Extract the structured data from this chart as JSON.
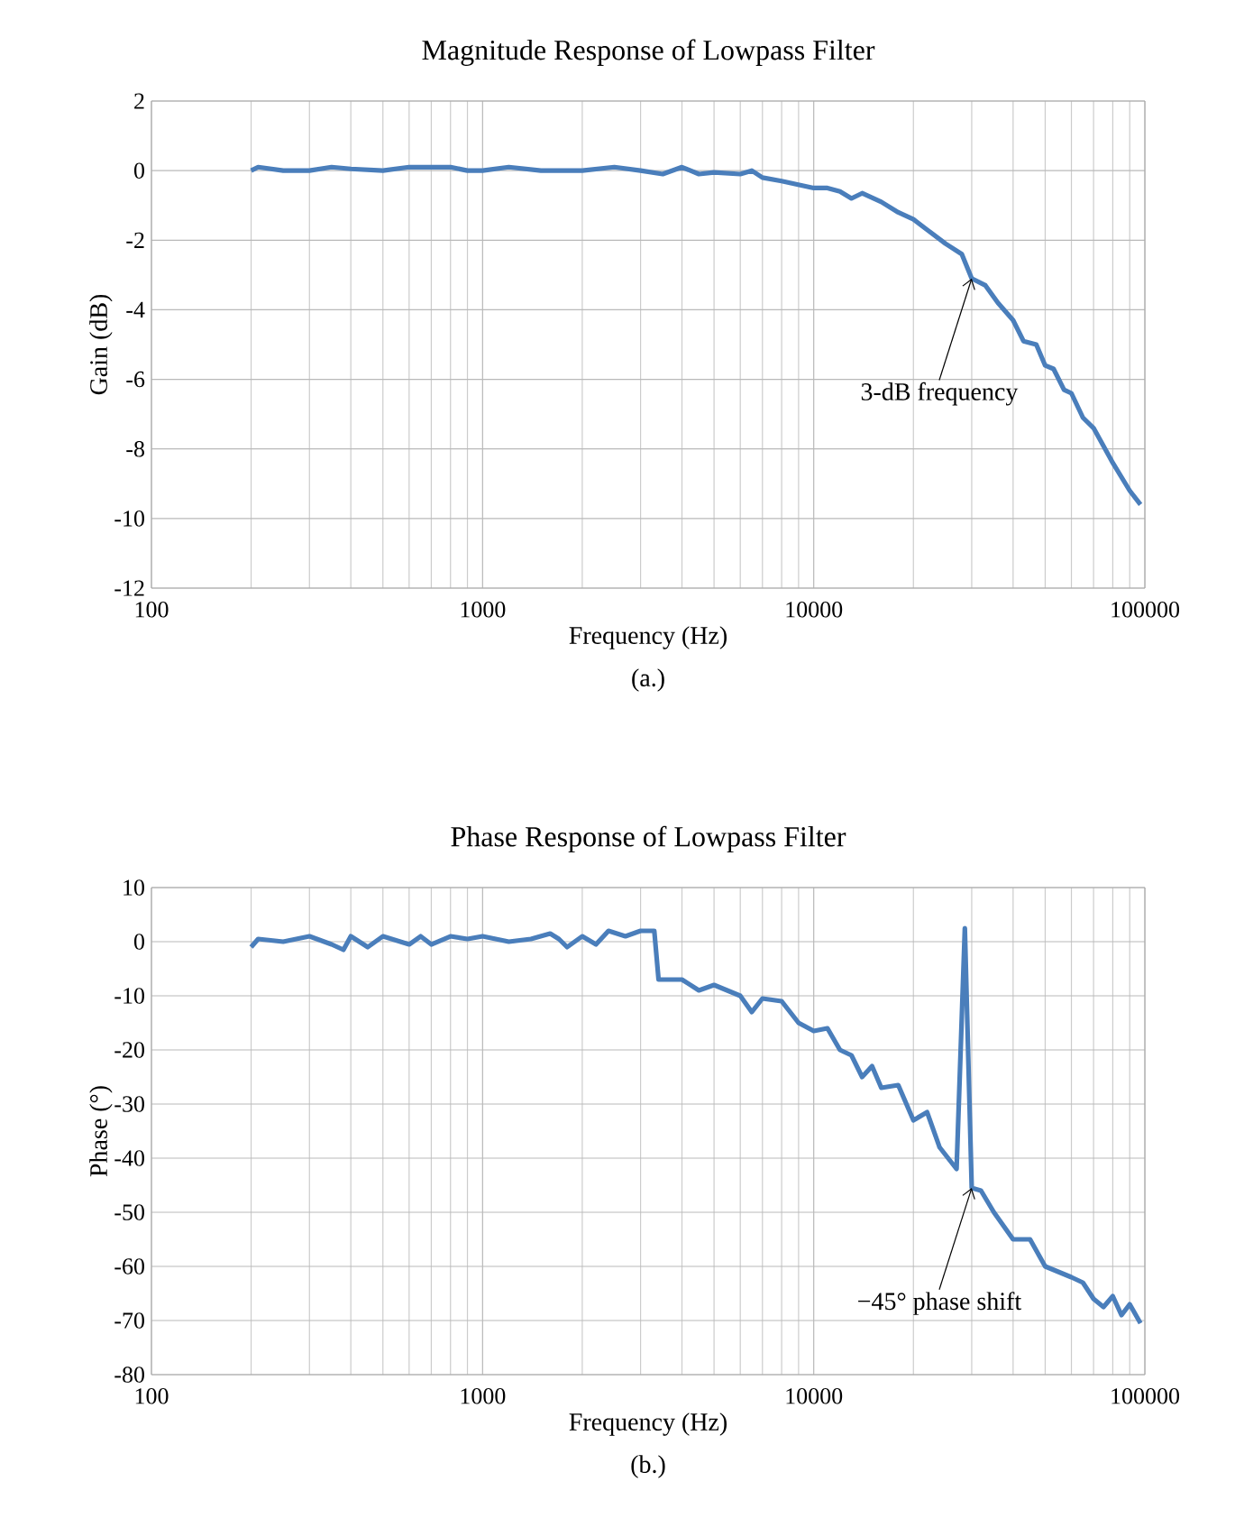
{
  "chart_data": [
    {
      "type": "line",
      "title": "Magnitude Response of Lowpass Filter",
      "xlabel": "Frequency (Hz)",
      "ylabel": "Gain (dB)",
      "log": "x",
      "grid": true,
      "color": "#4a7ebb",
      "xlim": [
        100,
        100000
      ],
      "ylim": [
        -12,
        2
      ],
      "xticks": [
        100,
        1000,
        10000,
        100000
      ],
      "yticks": [
        -12,
        -10,
        -8,
        -6,
        -4,
        -2,
        0,
        2
      ],
      "x": [
        200,
        210,
        250,
        300,
        350,
        400,
        500,
        600,
        800,
        900,
        1000,
        1200,
        1500,
        2000,
        2500,
        3000,
        3500,
        4000,
        4500,
        5000,
        6000,
        6500,
        7000,
        8000,
        10000,
        11000,
        12000,
        13000,
        14000,
        16000,
        18000,
        20000,
        22000,
        25000,
        28000,
        30000,
        33000,
        36000,
        40000,
        43000,
        47000,
        50000,
        53000,
        57000,
        60000,
        65000,
        70000,
        80000,
        90000,
        97000
      ],
      "values": [
        0,
        0.1,
        0,
        0,
        0.1,
        0.05,
        0,
        0.1,
        0.1,
        0,
        0,
        0.1,
        0,
        0,
        0.1,
        0,
        -0.1,
        0.1,
        -0.1,
        -0.05,
        -0.1,
        0,
        -0.2,
        -0.3,
        -0.5,
        -0.5,
        -0.6,
        -0.8,
        -0.65,
        -0.9,
        -1.2,
        -1.4,
        -1.7,
        -2.1,
        -2.4,
        -3.1,
        -3.3,
        -3.8,
        -4.3,
        -4.9,
        -5.0,
        -5.6,
        -5.7,
        -6.3,
        -6.4,
        -7.1,
        -7.4,
        -8.4,
        -9.2,
        -9.6
      ],
      "annotations": [
        {
          "text": "3-dB frequency",
          "x": 30000,
          "y": -3.1
        },
        "(a.)"
      ]
    },
    {
      "type": "line",
      "title": "Phase Response of Lowpass Filter",
      "xlabel": "Frequency (Hz)",
      "ylabel": "Phase (°)",
      "log": "x",
      "grid": true,
      "color": "#4a7ebb",
      "xlim": [
        100,
        100000
      ],
      "ylim": [
        -80,
        10
      ],
      "xticks": [
        100,
        1000,
        10000,
        100000
      ],
      "yticks": [
        -80,
        -70,
        -60,
        -50,
        -40,
        -30,
        -20,
        -10,
        0,
        10
      ],
      "x": [
        200,
        210,
        250,
        300,
        350,
        380,
        400,
        450,
        500,
        600,
        650,
        700,
        800,
        900,
        1000,
        1200,
        1400,
        1600,
        1700,
        1800,
        2000,
        2200,
        2400,
        2700,
        3000,
        3300,
        3400,
        4000,
        4500,
        5000,
        6000,
        6500,
        7000,
        8000,
        9000,
        10000,
        11000,
        12000,
        13000,
        14000,
        15000,
        16000,
        18000,
        20000,
        22000,
        24000,
        27000,
        28600,
        30000,
        32000,
        35000,
        40000,
        45000,
        50000,
        60000,
        65000,
        70000,
        75000,
        80000,
        85000,
        90000,
        97000
      ],
      "values": [
        -1,
        0.5,
        0,
        1,
        -0.5,
        -1.5,
        1,
        -1,
        1,
        -0.5,
        1,
        -0.5,
        1,
        0.5,
        1,
        0,
        0.5,
        1.5,
        0.5,
        -1,
        1,
        -0.5,
        2,
        1,
        2,
        2,
        -7,
        -7,
        -9,
        -8,
        -10,
        -13,
        -10.5,
        -11,
        -15,
        -16.5,
        -16,
        -20,
        -21,
        -25,
        -23,
        -27,
        -26.5,
        -33,
        -31.5,
        -38,
        -42,
        2.5,
        -45.5,
        -46,
        -50,
        -55,
        -55,
        -60,
        -62,
        -63,
        -66,
        -67.5,
        -65.5,
        -69,
        -67,
        -70.5
      ],
      "annotations": [
        {
          "text": "−45° phase shift",
          "x": 30000,
          "y": -45.5
        },
        "(b.)"
      ]
    }
  ]
}
